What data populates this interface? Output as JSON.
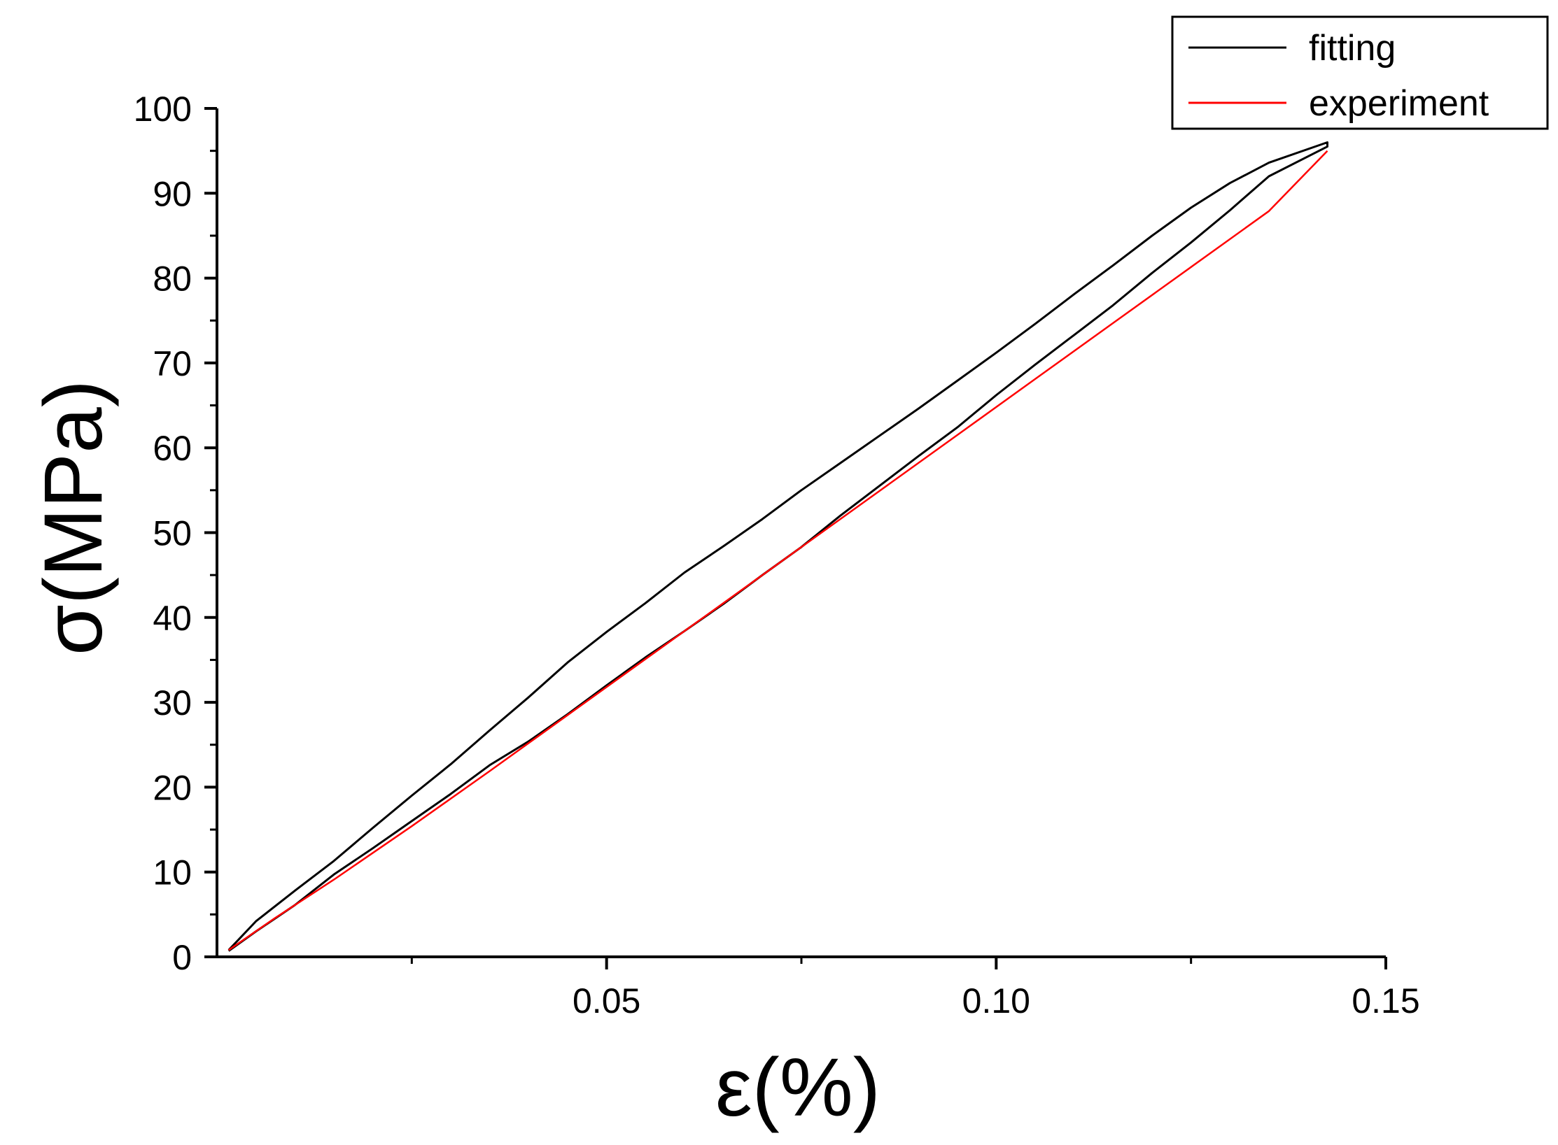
{
  "chart_data": {
    "type": "line",
    "xlabel": "ε(%)",
    "ylabel": "σ(MPa)",
    "xlim": [
      0.0,
      0.15
    ],
    "ylim": [
      0,
      100
    ],
    "x_ticks": [
      0.05,
      0.1,
      0.15
    ],
    "x_tick_labels": [
      "0.05",
      "0.10",
      "0.15"
    ],
    "y_ticks": [
      0,
      10,
      20,
      30,
      40,
      50,
      60,
      70,
      80,
      90,
      100
    ],
    "y_tick_labels": [
      "0",
      "10",
      "20",
      "30",
      "40",
      "50",
      "60",
      "70",
      "80",
      "90",
      "100"
    ],
    "grid": false,
    "legend_position": "top-right",
    "series": [
      {
        "name": "fitting",
        "color": "#000000",
        "x": [
          0.0015,
          0.005,
          0.01,
          0.015,
          0.02,
          0.025,
          0.03,
          0.035,
          0.04,
          0.045,
          0.05,
          0.055,
          0.06,
          0.065,
          0.07,
          0.075,
          0.08,
          0.085,
          0.09,
          0.095,
          0.1,
          0.105,
          0.11,
          0.115,
          0.12,
          0.125,
          0.13,
          0.135,
          0.1425,
          0.1425,
          0.135,
          0.13,
          0.125,
          0.12,
          0.115,
          0.11,
          0.105,
          0.1,
          0.095,
          0.09,
          0.085,
          0.08,
          0.075,
          0.07,
          0.065,
          0.06,
          0.055,
          0.05,
          0.045,
          0.04,
          0.035,
          0.03,
          0.025,
          0.02,
          0.015,
          0.01,
          0.005,
          0.0015
        ],
        "y": [
          0.8,
          4.2,
          7.8,
          11.3,
          15.2,
          19.0,
          22.7,
          26.7,
          30.6,
          34.7,
          38.3,
          41.7,
          45.3,
          48.4,
          51.6,
          55.0,
          58.2,
          61.4,
          64.6,
          67.9,
          71.2,
          74.6,
          78.1,
          81.5,
          85.0,
          88.3,
          91.2,
          93.6,
          96.0,
          95.5,
          92.0,
          88.0,
          84.2,
          80.6,
          76.8,
          73.3,
          69.8,
          66.2,
          62.4,
          59.0,
          55.5,
          52.0,
          48.3,
          45.0,
          41.6,
          38.4,
          35.3,
          32.0,
          28.6,
          25.4,
          22.6,
          19.2,
          16.0,
          12.8,
          9.7,
          6.1,
          3.0,
          0.7
        ]
      },
      {
        "name": "experiment",
        "color": "#ff0000",
        "x": [
          0.0015,
          0.0075,
          0.015,
          0.025,
          0.035,
          0.045,
          0.055,
          0.065,
          0.075,
          0.085,
          0.095,
          0.105,
          0.115,
          0.125,
          0.135,
          0.1425
        ],
        "y": [
          0.8,
          4.6,
          9.1,
          15.4,
          21.9,
          28.5,
          35.1,
          41.7,
          48.3,
          54.9,
          61.5,
          68.1,
          74.7,
          81.3,
          87.9,
          95.0
        ]
      }
    ]
  }
}
